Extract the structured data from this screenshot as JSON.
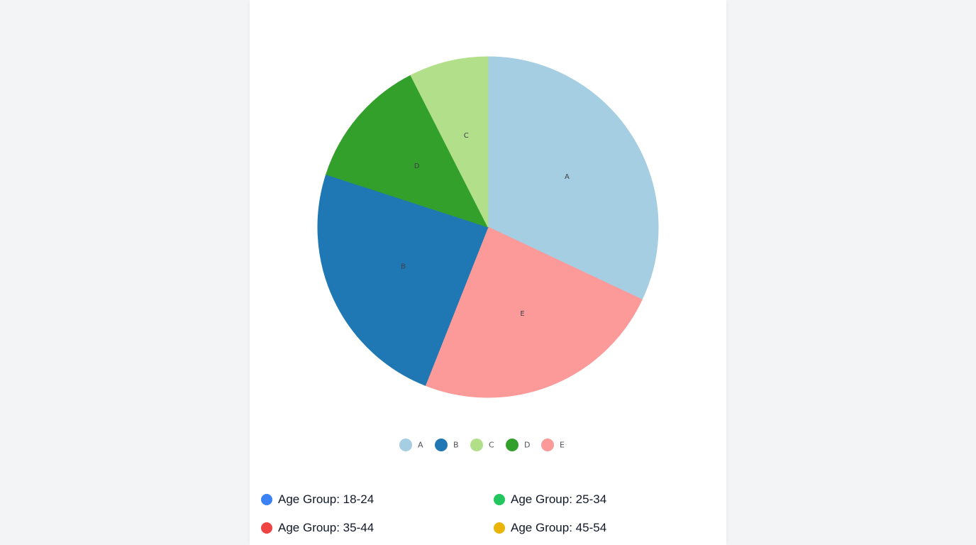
{
  "card": {
    "title": ""
  },
  "chart_data": {
    "type": "pie",
    "title": "",
    "categories": [
      "A",
      "B",
      "C",
      "D",
      "E"
    ],
    "values": [
      32,
      24,
      7.5,
      12.5,
      24
    ],
    "slice_order": [
      "A",
      "E",
      "B",
      "D",
      "C"
    ],
    "colors": {
      "A": "#a6cee3",
      "B": "#1f78b4",
      "C": "#b2df8a",
      "D": "#33a02c",
      "E": "#fb9a99"
    },
    "legend": [
      "A",
      "B",
      "C",
      "D",
      "E"
    ],
    "legend_position": "bottom"
  },
  "age_legend": [
    {
      "label": "Age Group: 18-24",
      "color": "#3b82f6"
    },
    {
      "label": "Age Group: 25-34",
      "color": "#22c55e"
    },
    {
      "label": "Age Group: 35-44",
      "color": "#ef4444"
    },
    {
      "label": "Age Group: 45-54",
      "color": "#eab308"
    }
  ]
}
